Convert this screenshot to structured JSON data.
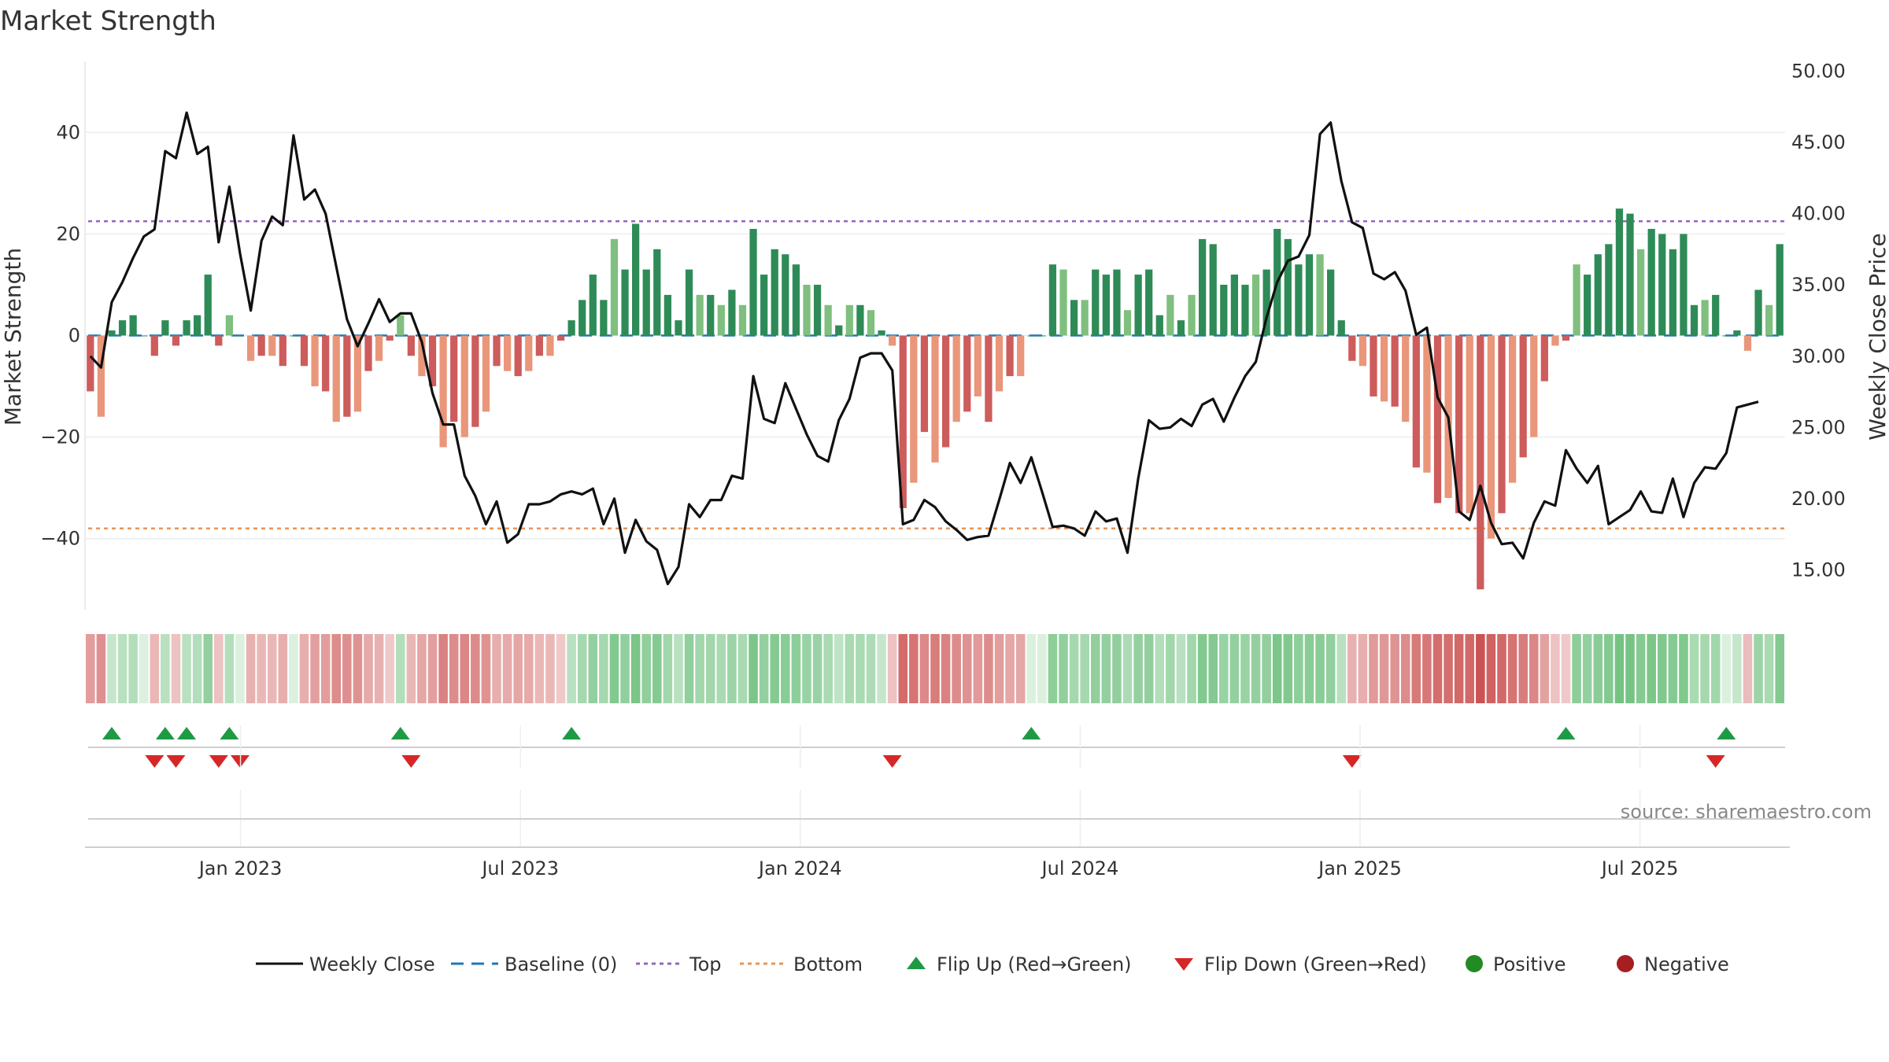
{
  "chart_data": {
    "type": "bar",
    "title": "Market Strength",
    "ylabel_left": "Market Strength",
    "ylabel_right": "Weekly Close Price",
    "y_left_ticks": [
      40,
      20,
      0,
      -20,
      -40
    ],
    "y_left_tick_labels": [
      "40",
      "20",
      "0",
      "−20",
      "−40"
    ],
    "y_left_range": [
      -54,
      54
    ],
    "y_right_ticks": [
      50,
      45,
      40,
      35,
      30,
      25,
      20,
      15
    ],
    "y_right_tick_labels": [
      "50.00",
      "45.00",
      "40.00",
      "35.00",
      "30.00",
      "25.00",
      "20.00",
      "15.00"
    ],
    "y_right_range": [
      12.2,
      50.7
    ],
    "x_range": [
      0,
      164
    ],
    "x_ticks": [
      15,
      42,
      69,
      96,
      123,
      150
    ],
    "x_tick_labels": [
      "Jan 2023",
      "Jul 2023",
      "Jan 2024",
      "Jul 2024",
      "Jan 2025",
      "Jul 2025"
    ],
    "top_line": 22.5,
    "bottom_line": -38,
    "strength": [
      -11,
      -16,
      1,
      3,
      4,
      0,
      -4,
      3,
      -2,
      3,
      4,
      12,
      -2,
      4,
      0,
      -5,
      -4,
      -4,
      -6,
      0,
      -6,
      -10,
      -11,
      -17,
      -16,
      -15,
      -7,
      -5,
      -1,
      4,
      -4,
      -8,
      -10,
      -22,
      -17,
      -20,
      -18,
      -15,
      -6,
      -7,
      -8,
      -7,
      -4,
      -4,
      -1,
      3,
      7,
      12,
      7,
      19,
      13,
      22,
      13,
      17,
      8,
      3,
      13,
      8,
      8,
      6,
      9,
      6,
      21,
      12,
      17,
      16,
      14,
      10,
      10,
      6,
      2,
      6,
      6,
      5,
      1,
      -2,
      -34,
      -29,
      -19,
      -25,
      -22,
      -17,
      -15,
      -12,
      -17,
      -11,
      -8,
      -8,
      0,
      0,
      14,
      13,
      7,
      7,
      13,
      12,
      13,
      5,
      12,
      13,
      4,
      8,
      3,
      8,
      19,
      18,
      10,
      12,
      10,
      12,
      13,
      21,
      19,
      14,
      16,
      16,
      13,
      3,
      -5,
      -6,
      -12,
      -13,
      -14,
      -17,
      -26,
      -27,
      -33,
      -32,
      -35,
      -35,
      -50,
      -40,
      -35,
      -29,
      -24,
      -20,
      -9,
      -2,
      -1,
      14,
      12,
      16,
      18,
      25,
      24,
      17,
      21,
      20,
      17,
      20,
      6,
      7,
      8,
      0,
      1,
      -3,
      9,
      6,
      18
    ],
    "close": [
      30.0,
      29.2,
      33.8,
      35.2,
      36.9,
      38.4,
      38.9,
      44.4,
      43.9,
      47.1,
      44.2,
      44.7,
      38.0,
      41.9,
      37.2,
      33.2,
      38.1,
      39.8,
      39.2,
      45.5,
      41.0,
      41.7,
      40.0,
      36.3,
      32.6,
      30.7,
      32.3,
      34.0,
      32.4,
      33.0,
      33.0,
      31.0,
      27.4,
      25.2,
      25.2,
      21.6,
      20.2,
      18.2,
      19.8,
      16.9,
      17.5,
      19.6,
      19.6,
      19.8,
      20.3,
      20.5,
      20.3,
      20.7,
      18.2,
      20.0,
      16.2,
      18.5,
      17.0,
      16.4,
      14.0,
      15.2,
      19.6,
      18.7,
      19.9,
      19.9,
      21.6,
      21.4,
      28.6,
      25.6,
      25.3,
      28.1,
      26.3,
      24.5,
      23.0,
      22.6,
      25.5,
      27.0,
      29.9,
      30.2,
      30.2,
      29.0,
      18.2,
      18.5,
      19.9,
      19.4,
      18.4,
      17.8,
      17.1,
      17.3,
      17.4,
      19.9,
      22.5,
      21.1,
      22.9,
      20.5,
      18.0,
      18.1,
      17.9,
      17.4,
      19.1,
      18.4,
      18.6,
      16.2,
      21.4,
      25.5,
      24.9,
      25.0,
      25.6,
      25.1,
      26.6,
      27.0,
      25.4,
      27.1,
      28.6,
      29.6,
      32.7,
      35.2,
      36.7,
      37.0,
      38.5,
      45.6,
      46.4,
      42.3,
      39.4,
      39.0,
      35.8,
      35.4,
      35.9,
      34.6,
      31.5,
      32.0,
      27.1,
      25.7,
      19.1,
      18.5,
      20.9,
      18.3,
      16.8,
      16.9,
      15.8,
      18.3,
      19.8,
      19.5,
      23.4,
      22.1,
      21.1,
      22.3,
      18.2,
      18.7,
      19.2,
      20.5,
      19.1,
      19.0,
      21.4,
      18.7,
      21.1,
      22.2,
      22.1,
      23.2,
      26.4,
      26.6,
      26.8
    ],
    "flip_up_indices": [
      2,
      7,
      9,
      13,
      29,
      45,
      88,
      138,
      153
    ],
    "flip_down_indices": [
      6,
      8,
      12,
      14,
      30,
      75,
      118,
      152
    ],
    "heat_note": "strength band shaded green for positive and red for negative, darker for larger magnitude",
    "legend": [
      {
        "label": "Weekly Close",
        "symbol": "line",
        "color": "#111111"
      },
      {
        "label": "Baseline (0)",
        "symbol": "dashed",
        "color": "#1f77b4"
      },
      {
        "label": "Top",
        "symbol": "dotted",
        "color": "#9467bd"
      },
      {
        "label": "Bottom",
        "symbol": "dotted",
        "color": "#e8955a"
      },
      {
        "label": "Flip Up (Red→Green)",
        "symbol": "triangle-up",
        "color": "#1e9a45"
      },
      {
        "label": "Flip Down (Green→Red)",
        "symbol": "triangle-down",
        "color": "#d62728"
      },
      {
        "label": "Positive",
        "symbol": "circle",
        "color": "#228b22"
      },
      {
        "label": "Negative",
        "symbol": "circle",
        "color": "#a61e22"
      }
    ],
    "colors": {
      "pos_strong": "#2e8b57",
      "pos_weak": "#7fbf7f",
      "neg_strong": "#cd5c5c",
      "neg_weak": "#e9967a",
      "price_line": "#111111",
      "baseline": "#1f77b4",
      "top": "#9467bd",
      "bottom": "#e8955a",
      "flip_up": "#1e9a45",
      "flip_down": "#d62728"
    }
  },
  "source_text": "source: sharemaestro.com"
}
